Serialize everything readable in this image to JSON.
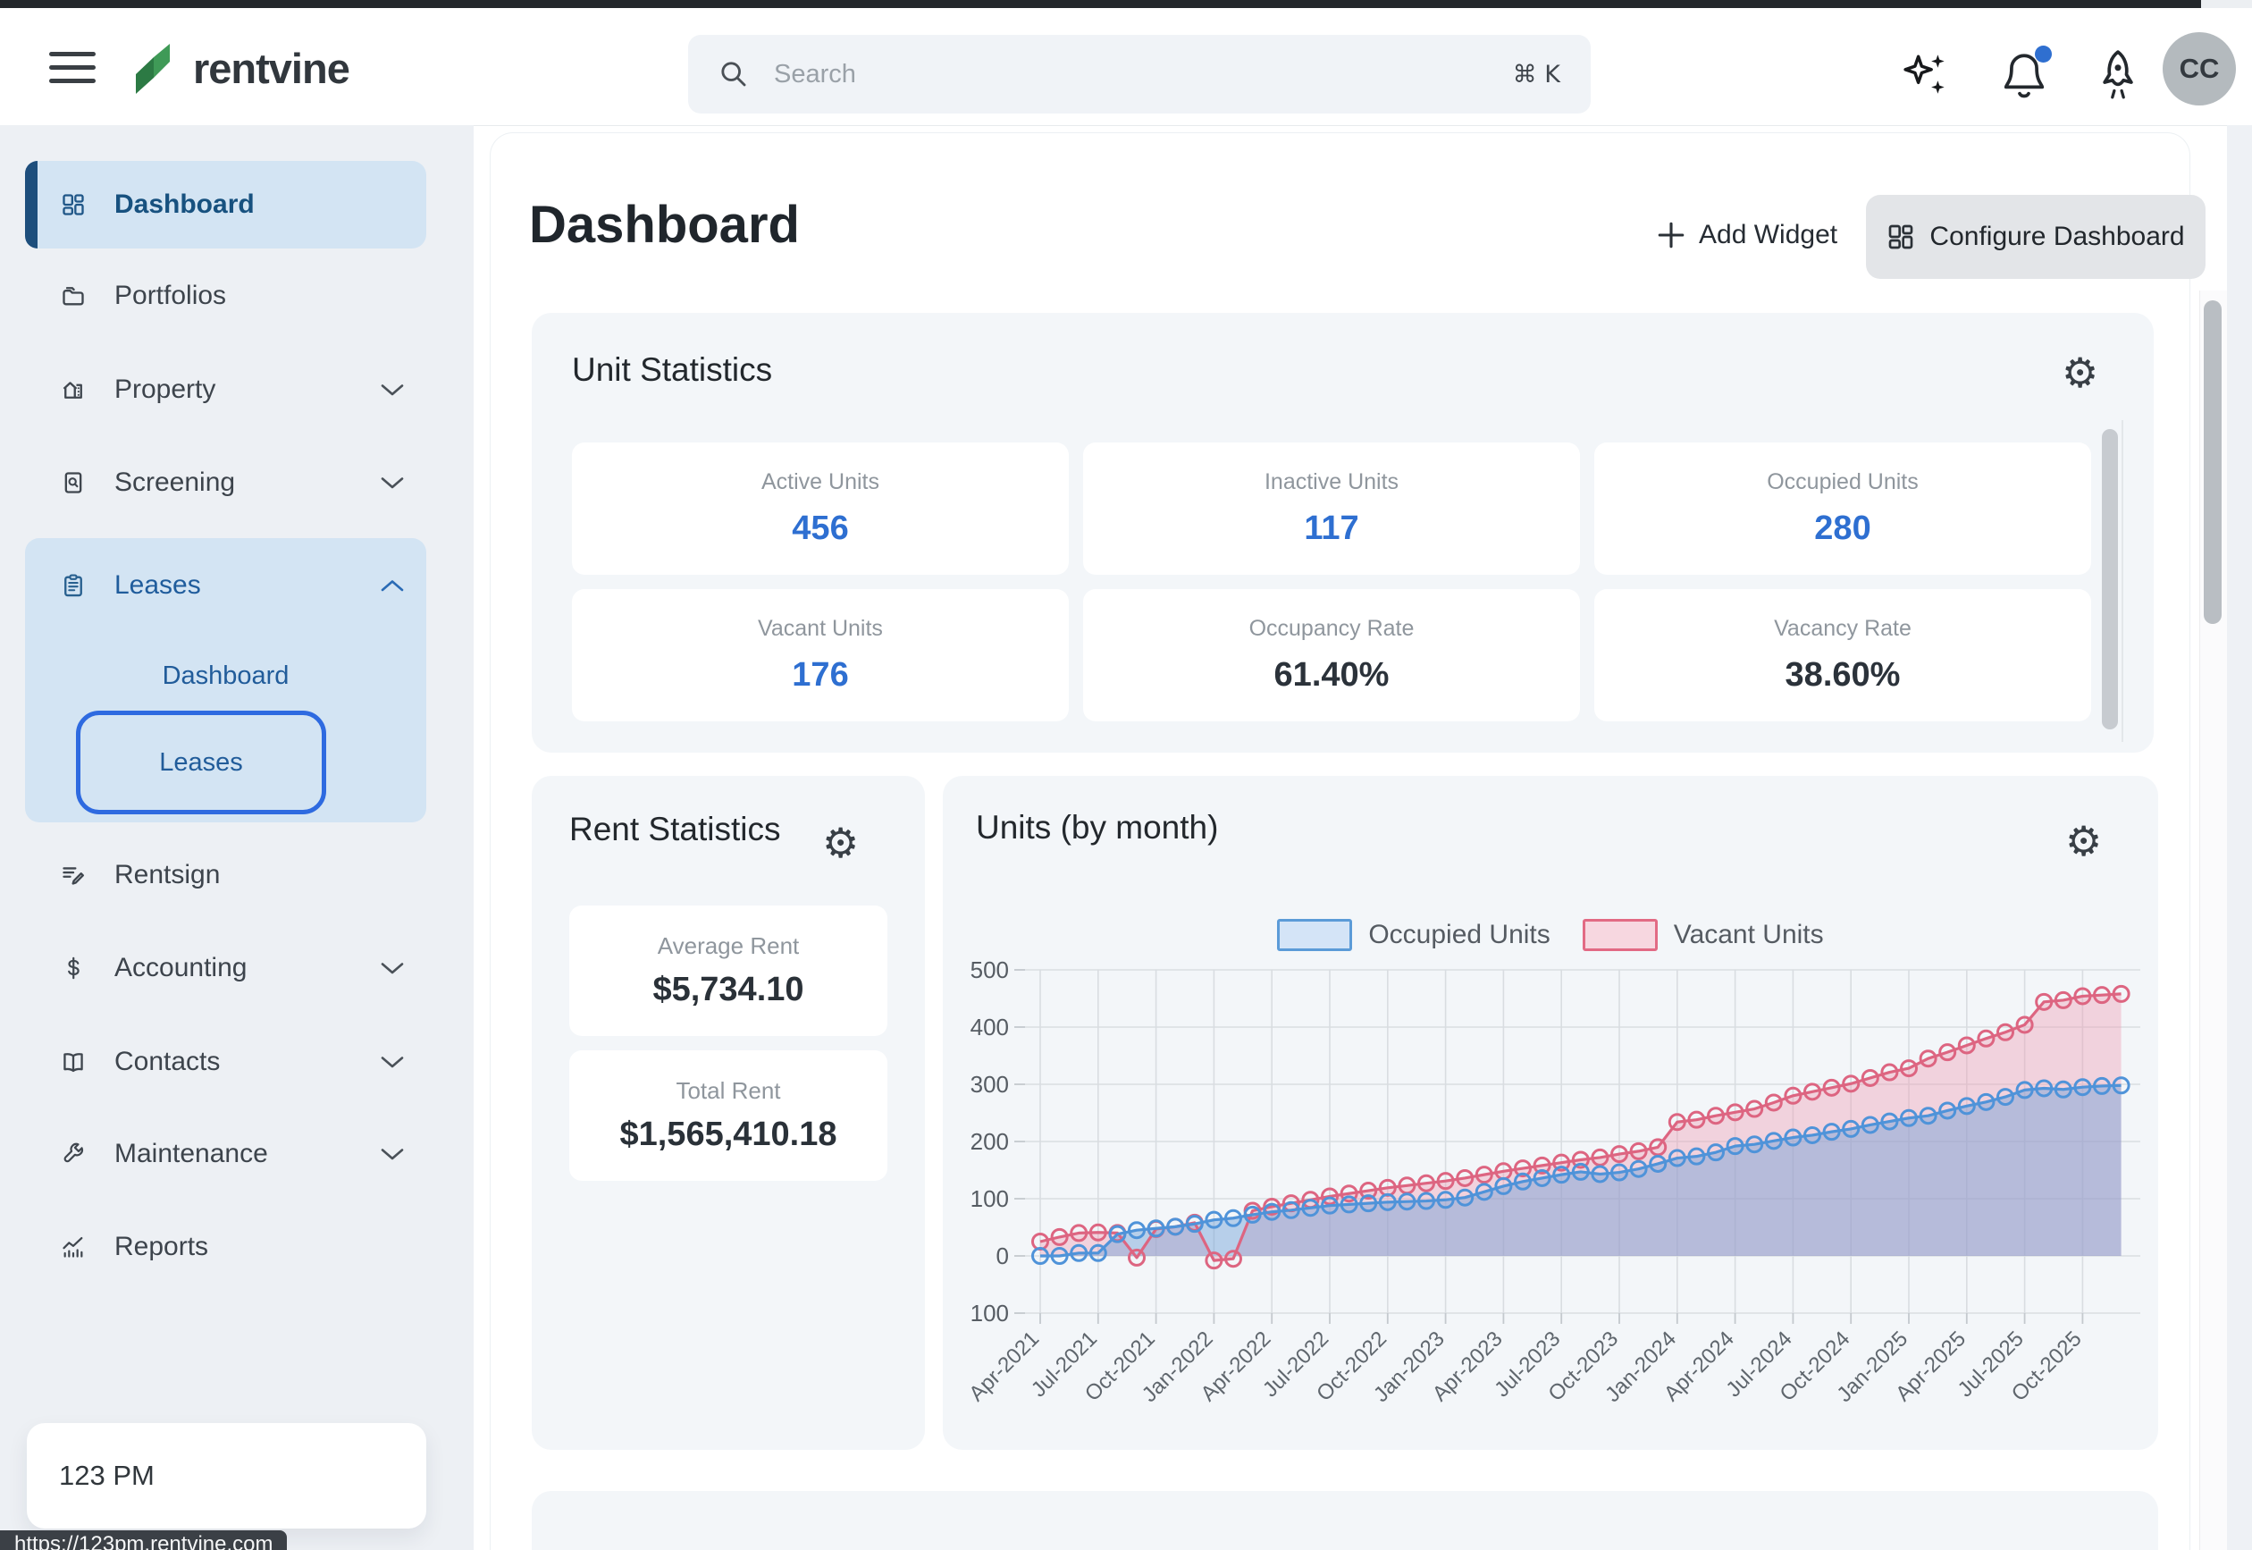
{
  "topbar": {
    "logo_text": "rentvine",
    "search_placeholder": "Search",
    "search_shortcut": "⌘ K",
    "avatar_initials": "CC"
  },
  "sidebar": {
    "items": [
      {
        "label": "Dashboard",
        "active": true
      },
      {
        "label": "Portfolios"
      },
      {
        "label": "Property",
        "chevron": "down"
      },
      {
        "label": "Screening",
        "chevron": "down"
      },
      {
        "label": "Leases",
        "chevron": "up",
        "expanded": true,
        "children": [
          {
            "label": "Dashboard"
          },
          {
            "label": "Leases",
            "focused": true
          }
        ]
      },
      {
        "label": "Rentsign"
      },
      {
        "label": "Accounting",
        "chevron": "down"
      },
      {
        "label": "Contacts",
        "chevron": "down"
      },
      {
        "label": "Maintenance",
        "chevron": "down"
      },
      {
        "label": "Reports"
      }
    ],
    "footer_label": "123 PM",
    "url_tooltip": "https://123pm.rentvine.com"
  },
  "page": {
    "title": "Dashboard",
    "add_widget_label": "Add Widget",
    "configure_label": "Configure Dashboard"
  },
  "unit_stats": {
    "title": "Unit Statistics",
    "cells": [
      {
        "label": "Active Units",
        "value": "456"
      },
      {
        "label": "Inactive Units",
        "value": "117"
      },
      {
        "label": "Occupied Units",
        "value": "280"
      },
      {
        "label": "Vacant Units",
        "value": "176"
      },
      {
        "label": "Occupancy Rate",
        "value": "61.40%"
      },
      {
        "label": "Vacancy Rate",
        "value": "38.60%"
      }
    ]
  },
  "rent_stats": {
    "title": "Rent Statistics",
    "cells": [
      {
        "label": "Average Rent",
        "value": "$5,734.10"
      },
      {
        "label": "Total Rent",
        "value": "$1,565,410.18"
      }
    ]
  },
  "chart_data": {
    "type": "line",
    "title": "Units (by month)",
    "xlabel": "",
    "ylabel": "",
    "ylim": [
      -100,
      500
    ],
    "yticks": [
      500,
      400,
      300,
      200,
      100,
      0,
      -100
    ],
    "x_tick_interval": 3,
    "grid": true,
    "legend_position": "top",
    "x": [
      "Apr-2021",
      "May-2021",
      "Jun-2021",
      "Jul-2021",
      "Aug-2021",
      "Sep-2021",
      "Oct-2021",
      "Nov-2021",
      "Dec-2021",
      "Jan-2022",
      "Feb-2022",
      "Mar-2022",
      "Apr-2022",
      "May-2022",
      "Jun-2022",
      "Jul-2022",
      "Aug-2022",
      "Sep-2022",
      "Oct-2022",
      "Nov-2022",
      "Dec-2022",
      "Jan-2023",
      "Feb-2023",
      "Mar-2023",
      "Apr-2023",
      "May-2023",
      "Jun-2023",
      "Jul-2023",
      "Aug-2023",
      "Sep-2023",
      "Oct-2023",
      "Nov-2023",
      "Dec-2023",
      "Jan-2024",
      "Feb-2024",
      "Mar-2024",
      "Apr-2024",
      "May-2024",
      "Jun-2024",
      "Jul-2024",
      "Aug-2024",
      "Sep-2024",
      "Oct-2024",
      "Nov-2024",
      "Dec-2024",
      "Jan-2025",
      "Feb-2025",
      "Mar-2025",
      "Apr-2025",
      "May-2025",
      "Jun-2025",
      "Jul-2025",
      "Aug-2025",
      "Sep-2025",
      "Oct-2025",
      "Nov-2025",
      "Dec-2025"
    ],
    "series": [
      {
        "name": "Occupied Units",
        "color": "#4f93d9",
        "fill": "rgba(111,160,214,0.45)",
        "values": [
          0,
          0,
          5,
          5,
          38,
          45,
          48,
          51,
          56,
          63,
          66,
          72,
          77,
          80,
          84,
          88,
          90,
          92,
          94,
          95,
          96,
          98,
          102,
          112,
          122,
          130,
          136,
          142,
          147,
          143,
          146,
          152,
          161,
          171,
          174,
          181,
          192,
          195,
          201,
          207,
          211,
          217,
          222,
          229,
          235,
          241,
          245,
          254,
          262,
          269,
          278,
          290,
          293,
          291,
          295,
          297,
          298
        ]
      },
      {
        "name": "Vacant Units",
        "color": "#dd6581",
        "fill": "rgba(238,153,176,0.38)",
        "values": [
          25,
          33,
          40,
          41,
          40,
          -3,
          47,
          51,
          58,
          -8,
          -5,
          79,
          86,
          92,
          98,
          104,
          109,
          114,
          119,
          123,
          127,
          131,
          136,
          142,
          148,
          153,
          158,
          163,
          168,
          172,
          178,
          183,
          190,
          234,
          238,
          245,
          251,
          257,
          268,
          280,
          287,
          294,
          301,
          311,
          321,
          328,
          345,
          356,
          368,
          380,
          391,
          404,
          444,
          447,
          454,
          456,
          458
        ]
      }
    ]
  }
}
